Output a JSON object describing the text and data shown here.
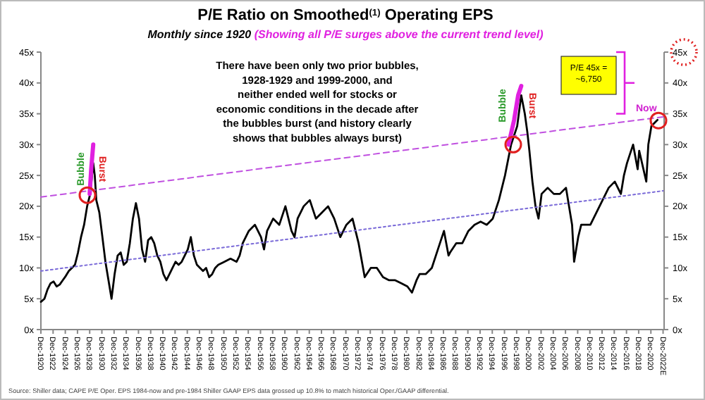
{
  "chart_data": {
    "type": "line",
    "title": "P/E Ratio on Smoothed$^{(1)}$ Operating EPS",
    "subtitle": "Monthly since 1920 (Showing all P/E surges above the current trend level)",
    "x": [
      "1920-12",
      "1921-07",
      "1922-01",
      "1922-07",
      "1923-01",
      "1923-07",
      "1924-01",
      "1924-07",
      "1925-01",
      "1925-07",
      "1926-01",
      "1926-07",
      "1927-01",
      "1927-07",
      "1928-01",
      "1928-07",
      "1929-01",
      "1929-07",
      "1929-10",
      "1930-01",
      "1930-07",
      "1931-01",
      "1931-07",
      "1932-01",
      "1932-07",
      "1933-01",
      "1933-07",
      "1934-01",
      "1934-07",
      "1935-01",
      "1935-07",
      "1936-01",
      "1936-07",
      "1937-01",
      "1937-07",
      "1938-01",
      "1938-07",
      "1939-01",
      "1939-07",
      "1940-01",
      "1940-07",
      "1941-01",
      "1941-07",
      "1942-01",
      "1942-07",
      "1943-01",
      "1943-07",
      "1944-01",
      "1944-07",
      "1945-01",
      "1945-07",
      "1946-01",
      "1946-07",
      "1947-01",
      "1947-07",
      "1948-01",
      "1948-07",
      "1949-01",
      "1949-07",
      "1950-01",
      "1951-01",
      "1952-01",
      "1953-01",
      "1953-07",
      "1954-01",
      "1955-01",
      "1956-01",
      "1957-01",
      "1957-07",
      "1958-01",
      "1959-01",
      "1960-01",
      "1961-01",
      "1962-01",
      "1962-07",
      "1963-01",
      "1964-01",
      "1965-01",
      "1966-01",
      "1967-01",
      "1968-01",
      "1969-01",
      "1970-01",
      "1971-01",
      "1972-01",
      "1973-01",
      "1974-01",
      "1975-01",
      "1976-01",
      "1977-01",
      "1978-01",
      "1979-01",
      "1980-01",
      "1981-01",
      "1981-10",
      "1982-07",
      "1983-01",
      "1984-01",
      "1985-01",
      "1986-01",
      "1987-01",
      "1987-10",
      "1988-01",
      "1989-01",
      "1990-01",
      "1991-01",
      "1992-01",
      "1993-01",
      "1994-01",
      "1995-01",
      "1996-01",
      "1997-01",
      "1998-01",
      "1999-01",
      "1999-09",
      "2000-04",
      "2000-09",
      "2001-01",
      "2001-07",
      "2002-01",
      "2002-07",
      "2003-01",
      "2004-01",
      "2005-01",
      "2006-01",
      "2007-01",
      "2007-07",
      "2008-01",
      "2008-05",
      "2009-01",
      "2009-07",
      "2010-01",
      "2011-01",
      "2012-01",
      "2013-01",
      "2014-01",
      "2015-01",
      "2016-01",
      "2016-07",
      "2017-01",
      "2018-01",
      "2018-10",
      "2019-01",
      "2020-03",
      "2020-07",
      "2021-01",
      "2022-01"
    ],
    "series": [
      {
        "color": "#000000",
        "line_style": "solid",
        "values": [
          4.5,
          5,
          6.5,
          7.5,
          7.8,
          7,
          7.3,
          8,
          8.7,
          9.5,
          10,
          10.5,
          12.5,
          15,
          17,
          20,
          22,
          27,
          25,
          21,
          19,
          15,
          11,
          8,
          5,
          9,
          12,
          12.5,
          10.5,
          11,
          14,
          18,
          20.5,
          18,
          13,
          11,
          14.5,
          15,
          14,
          12,
          11,
          9,
          8,
          9,
          10,
          11,
          10.5,
          11,
          12,
          13,
          15,
          12,
          10.5,
          10,
          9.5,
          10,
          8.5,
          9,
          10,
          10.5,
          11,
          11.5,
          11,
          12,
          14,
          16,
          17,
          15,
          13,
          16,
          18,
          17,
          20,
          16,
          15,
          18,
          20,
          21,
          18,
          19,
          20,
          18,
          15,
          17,
          18,
          14,
          8.5,
          10,
          10,
          8.5,
          8,
          8,
          7.5,
          7,
          6,
          8,
          9,
          9,
          10,
          13,
          16,
          12,
          12.5,
          14,
          14,
          16,
          17,
          17.5,
          17,
          18,
          21,
          25,
          30,
          33,
          38,
          35,
          32,
          29,
          24,
          20,
          18,
          22,
          23,
          22,
          22,
          23,
          20,
          17,
          11,
          15,
          17,
          17,
          17,
          19,
          21,
          23,
          24,
          22,
          25,
          27,
          30,
          26,
          29,
          24,
          30,
          33,
          34
        ]
      },
      {
        "color": "#e020e0",
        "line_style": "solid",
        "x": [
          "1928-12",
          "1929-03",
          "1929-07"
        ],
        "values": [
          22,
          26,
          30
        ]
      },
      {
        "color": "#e020e0",
        "line_style": "solid",
        "x": [
          "1997-08",
          "1998-07",
          "1999-03",
          "1999-09"
        ],
        "values": [
          30,
          34,
          38,
          39.5
        ]
      },
      {
        "color": "#c050e0",
        "line_style": "dashed",
        "x": [
          "1920-12",
          "2022-12"
        ],
        "values": [
          21.5,
          34.5
        ]
      },
      {
        "color": "#7a6ad8",
        "line_style": "dotted",
        "x": [
          "1920-12",
          "2022-12"
        ],
        "values": [
          9.5,
          22.5
        ]
      }
    ],
    "xlim": [
      "1920-12",
      "2023-02"
    ],
    "xticks": [
      {
        "value": "1920-12",
        "label": "Dec-1920"
      },
      {
        "value": "1922-12",
        "label": "Dec-1922"
      },
      {
        "value": "1924-12",
        "label": "Dec-1924"
      },
      {
        "value": "1926-12",
        "label": "Dec-1926"
      },
      {
        "value": "1928-12",
        "label": "Dec-1928"
      },
      {
        "value": "1930-12",
        "label": "Dec-1930"
      },
      {
        "value": "1932-12",
        "label": "Dec-1932"
      },
      {
        "value": "1934-12",
        "label": "Dec-1934"
      },
      {
        "value": "1936-12",
        "label": "Dec-1936"
      },
      {
        "value": "1938-12",
        "label": "Dec-1938"
      },
      {
        "value": "1940-12",
        "label": "Dec-1940"
      },
      {
        "value": "1942-12",
        "label": "Dec-1942"
      },
      {
        "value": "1944-12",
        "label": "Dec-1944"
      },
      {
        "value": "1946-12",
        "label": "Dec-1946"
      },
      {
        "value": "1948-12",
        "label": "Dec-1948"
      },
      {
        "value": "1950-12",
        "label": "Dec-1950"
      },
      {
        "value": "1952-12",
        "label": "Dec-1952"
      },
      {
        "value": "1954-12",
        "label": "Dec-1954"
      },
      {
        "value": "1956-12",
        "label": "Dec-1956"
      },
      {
        "value": "1958-12",
        "label": "Dec-1958"
      },
      {
        "value": "1960-12",
        "label": "Dec-1960"
      },
      {
        "value": "1962-12",
        "label": "Dec-1962"
      },
      {
        "value": "1964-12",
        "label": "Dec-1964"
      },
      {
        "value": "1966-12",
        "label": "Dec-1966"
      },
      {
        "value": "1968-12",
        "label": "Dec-1968"
      },
      {
        "value": "1970-12",
        "label": "Dec-1970"
      },
      {
        "value": "1972-12",
        "label": "Dec-1972"
      },
      {
        "value": "1974-12",
        "label": "Dec-1974"
      },
      {
        "value": "1976-12",
        "label": "Dec-1976"
      },
      {
        "value": "1978-12",
        "label": "Dec-1978"
      },
      {
        "value": "1980-12",
        "label": "Dec-1980"
      },
      {
        "value": "1982-12",
        "label": "Dec-1982"
      },
      {
        "value": "1984-12",
        "label": "Dec-1984"
      },
      {
        "value": "1986-12",
        "label": "Dec-1986"
      },
      {
        "value": "1988-12",
        "label": "Dec-1988"
      },
      {
        "value": "1990-12",
        "label": "Dec-1990"
      },
      {
        "value": "1992-12",
        "label": "Dec-1992"
      },
      {
        "value": "1994-12",
        "label": "Dec-1994"
      },
      {
        "value": "1996-12",
        "label": "Dec-1996"
      },
      {
        "value": "1998-12",
        "label": "Dec-1998"
      },
      {
        "value": "2000-12",
        "label": "Dec-2000"
      },
      {
        "value": "2002-12",
        "label": "Dec-2002"
      },
      {
        "value": "2004-12",
        "label": "Dec-2004"
      },
      {
        "value": "2006-12",
        "label": "Dec-2006"
      },
      {
        "value": "2008-12",
        "label": "Dec-2008"
      },
      {
        "value": "2010-12",
        "label": "Dec-2010"
      },
      {
        "value": "2012-12",
        "label": "Dec-2012"
      },
      {
        "value": "2014-12",
        "label": "Dec-2014"
      },
      {
        "value": "2016-12",
        "label": "Dec-2016"
      },
      {
        "value": "2018-12",
        "label": "Dec-2018"
      },
      {
        "value": "2020-12",
        "label": "Dec-2020"
      },
      {
        "value": "2022-12",
        "label": "Dec-2022E"
      }
    ],
    "ylim": [
      0,
      45
    ],
    "yticks": [
      {
        "value": 0,
        "label": "0x"
      },
      {
        "value": 5,
        "label": "5x"
      },
      {
        "value": 10,
        "label": "10x"
      },
      {
        "value": 15,
        "label": "15x"
      },
      {
        "value": 20,
        "label": "20x"
      },
      {
        "value": 25,
        "label": "25x"
      },
      {
        "value": 30,
        "label": "30x"
      },
      {
        "value": 35,
        "label": "35x"
      },
      {
        "value": 40,
        "label": "40x"
      },
      {
        "value": 45,
        "label": "45x"
      }
    ],
    "y2lim": [
      0,
      45
    ],
    "y2ticks": [
      {
        "value": 0,
        "label": "0x"
      },
      {
        "value": 5,
        "label": "5x"
      },
      {
        "value": 10,
        "label": "10x"
      },
      {
        "value": 15,
        "label": "15x"
      },
      {
        "value": 20,
        "label": "20x"
      },
      {
        "value": 25,
        "label": "25x"
      },
      {
        "value": 30,
        "label": "30x"
      },
      {
        "value": 35,
        "label": "35x"
      },
      {
        "value": 40,
        "label": "40x"
      },
      {
        "value": 45,
        "label": "45x"
      }
    ],
    "grid": false,
    "annotations": [
      "There have been only two prior bubbles,\n1928-1929 and 1999-2000, and\nneither ended well for stocks or\neconomic conditions in the decade after\nthe bubbles burst (and history clearly\nshows that bubbles always burst)",
      "P/E 45x =\n~6,750",
      "Bubble",
      "Burst",
      "Bubble",
      "Burst",
      "Now",
      "Source: Shiller data; CAPE P/E Oper. EPS 1984-now and pre-1984 Shiller GAAP EPS data grossed up 10.8% to match historical Oper./GAAP differential."
    ]
  }
}
